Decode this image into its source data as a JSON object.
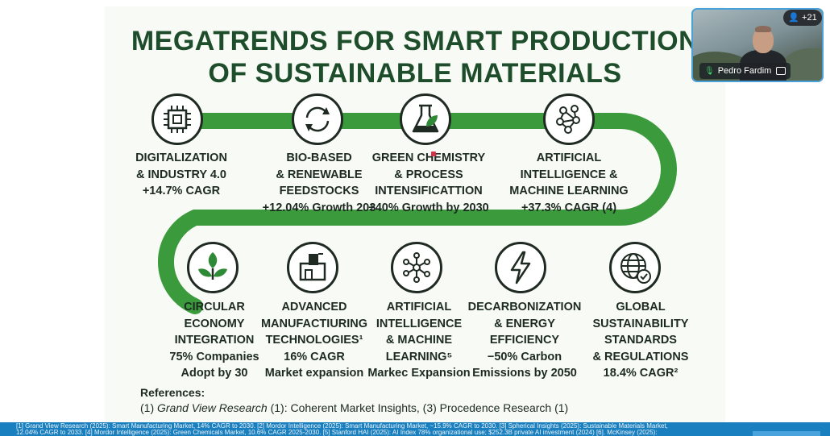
{
  "slide": {
    "title_line1": "MEGATRENDS FOR SMART PRODUCTION",
    "title_line2": "OF SUSTAINABLE MATERIALS",
    "trends": [
      {
        "icon": "chip-icon",
        "lines": [
          "DIGITALIZATION",
          "& INDUSTRY 4.0",
          "+14.7% CAGR"
        ]
      },
      {
        "icon": "recycle-arrows-icon",
        "lines": [
          "BIO-BASED",
          "& RENEWABLE",
          "FEEDSTOCKS",
          "+12.04% Growth 203"
        ]
      },
      {
        "icon": "flask-leaf-icon",
        "lines": [
          "GREEN CHEMISTRY",
          "& PROCESS",
          "INTENSIFICATTION",
          "+40% Growth by 2030"
        ]
      },
      {
        "icon": "neural-network-icon",
        "lines": [
          "ARTIFICIAL",
          "INTELLIGENCE &",
          "MACHINE LEARNING",
          "+37.3% CAGR (4)"
        ]
      },
      {
        "icon": "sprout-icon",
        "lines": [
          "CIRCULAR",
          "ECONOMY",
          "INTEGRATION",
          "75% Companies",
          "Adopt by 30"
        ]
      },
      {
        "icon": "machine-icon",
        "lines": [
          "ADVANCED",
          "MANUFACTIURING",
          "TECHNOLOGIES¹",
          "16% CAGR",
          "Market expansion"
        ]
      },
      {
        "icon": "network-nodes-icon",
        "lines": [
          "ARTIFICIAL",
          "INTELLIGENCE",
          "& MACHINE",
          "LEARNING⁵",
          "Markec Expansion"
        ]
      },
      {
        "icon": "lightning-icon",
        "lines": [
          "DECARBONIZATION",
          "& ENERGY",
          "EFFICIENCY",
          "−50% Carbon",
          "Emissions by 2050"
        ]
      },
      {
        "icon": "globe-check-icon",
        "lines": [
          "GLOBAL",
          "SUSTAINABILITY",
          "STANDARDS",
          "& REGULATIONS",
          "18.4% CAGR²"
        ]
      }
    ],
    "references_heading": "References:",
    "references_prefix": "(1) ",
    "references_italic": "Grand View Research",
    "references_rest": " (1): Coherent Market Insights, (3) Procedence Research (1)"
  },
  "footer": {
    "line1": "[1] Grand View Research (2025): Smart Manufacturing Market, 14% CAGR to 2030. [2] Mordor Intelligence (2025): Smart Manufacturing Market, ~15.9% CAGR to 2030. [3] Spherical Insights (2025): Sustainable Materials Market,",
    "line2": "12.04% CAGR to 2033. [4] Mordor Intelligence (2025): Green Chemicals Market, 10.6% CAGR 2025-2030. [5] Stanford HAI (2025): AI Index 78% organizational use; $252.3B private AI investment (2024) [6]. McKinsey (2025):"
  },
  "call": {
    "participant_name": "Pedro Fardim",
    "participants_count": "+21"
  },
  "colors": {
    "snake_green": "#3a9a3c",
    "title_green": "#1e4d2b",
    "footer_blue": "#1a7fbe"
  }
}
